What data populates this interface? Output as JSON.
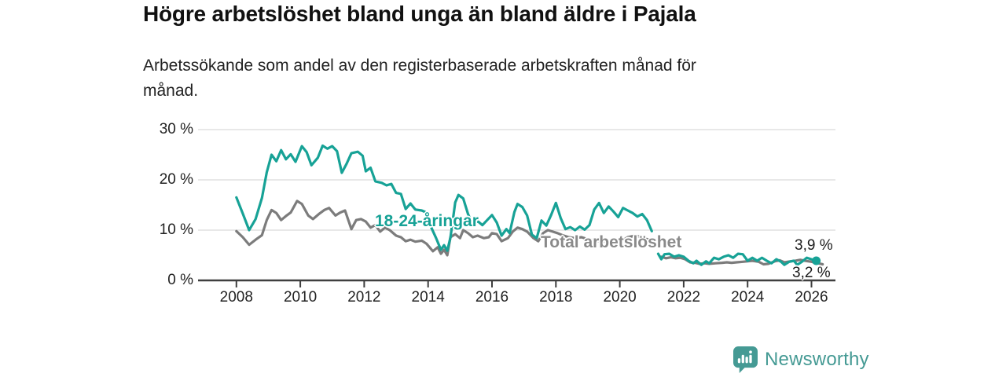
{
  "colors": {
    "youth_line": "#17A296",
    "total_line": "#7C7C7C",
    "axis": "#3f3f3f",
    "grid": "#dadada",
    "title_text": "#111111",
    "logo": "#459A94"
  },
  "branding": {
    "logo_text": "Newsworthy"
  },
  "chart_data": {
    "type": "line",
    "title": "Högre arbetslöshet bland unga än bland äldre i Pajala",
    "subtitle": "Arbetssökande som andel av den registerbaserade arbetskraften månad för\nmånad.",
    "xlabel": "",
    "ylabel": "",
    "grid": "horizontal",
    "legend_position": "inline-labels",
    "x_ticks": [
      2008,
      2010,
      2012,
      2014,
      2016,
      2018,
      2020,
      2022,
      2024,
      2026
    ],
    "y_ticks": [
      0,
      10,
      20,
      30
    ],
    "y_tick_labels": [
      "0 %",
      "10 %",
      "20 %",
      "30 %"
    ],
    "ylim": [
      0,
      32
    ],
    "xlim": [
      2006.8,
      2026.75
    ],
    "series": [
      {
        "name": "18-24-åringar",
        "color": "#17A296",
        "end_value_label": "3,9 %",
        "end_dot": true,
        "segments": [
          [
            [
              2008.0,
              16.5
            ],
            [
              2008.2,
              13.3
            ],
            [
              2008.4,
              10.0
            ],
            [
              2008.6,
              12.2
            ],
            [
              2008.8,
              16.4
            ],
            [
              2008.95,
              21.5
            ],
            [
              2009.1,
              25.0
            ],
            [
              2009.25,
              23.7
            ],
            [
              2009.4,
              25.9
            ],
            [
              2009.55,
              24.1
            ],
            [
              2009.7,
              25.1
            ],
            [
              2009.85,
              23.6
            ],
            [
              2010.05,
              26.7
            ],
            [
              2010.2,
              25.5
            ],
            [
              2010.35,
              22.9
            ],
            [
              2010.55,
              24.4
            ],
            [
              2010.7,
              26.8
            ],
            [
              2010.85,
              26.2
            ],
            [
              2011.0,
              26.7
            ],
            [
              2011.15,
              25.7
            ],
            [
              2011.3,
              21.4
            ],
            [
              2011.45,
              23.2
            ],
            [
              2011.6,
              25.3
            ],
            [
              2011.8,
              25.6
            ],
            [
              2011.95,
              24.8
            ],
            [
              2012.05,
              21.7
            ],
            [
              2012.2,
              22.4
            ],
            [
              2012.35,
              19.7
            ],
            [
              2012.55,
              19.4
            ],
            [
              2012.7,
              18.9
            ],
            [
              2012.85,
              19.2
            ],
            [
              2013.0,
              17.4
            ],
            [
              2013.15,
              17.2
            ],
            [
              2013.3,
              14.2
            ],
            [
              2013.45,
              15.3
            ],
            [
              2013.6,
              14.1
            ],
            [
              2013.8,
              13.9
            ],
            [
              2013.95,
              13.5
            ],
            [
              2014.1,
              10.5
            ],
            [
              2014.25,
              8.4
            ],
            [
              2014.4,
              6.1
            ],
            [
              2014.5,
              7.0
            ],
            [
              2014.6,
              5.9
            ],
            [
              2014.7,
              8.5
            ],
            [
              2014.85,
              15.5
            ],
            [
              2014.95,
              17.0
            ],
            [
              2015.1,
              16.3
            ],
            [
              2015.25,
              13.2
            ],
            [
              2015.4,
              11.1
            ],
            [
              2015.55,
              11.8
            ],
            [
              2015.7,
              11.0
            ],
            [
              2015.85,
              12.0
            ],
            [
              2016.0,
              13.0
            ],
            [
              2016.15,
              11.5
            ],
            [
              2016.3,
              8.9
            ],
            [
              2016.45,
              10.2
            ],
            [
              2016.55,
              9.4
            ],
            [
              2016.7,
              13.6
            ],
            [
              2016.8,
              15.2
            ],
            [
              2016.95,
              14.6
            ],
            [
              2017.1,
              12.9
            ],
            [
              2017.25,
              9.1
            ],
            [
              2017.4,
              8.4
            ],
            [
              2017.55,
              11.9
            ],
            [
              2017.7,
              10.9
            ],
            [
              2017.85,
              13.0
            ],
            [
              2018.0,
              15.4
            ],
            [
              2018.15,
              12.4
            ],
            [
              2018.3,
              10.2
            ],
            [
              2018.45,
              10.6
            ],
            [
              2018.6,
              10.0
            ],
            [
              2018.75,
              10.7
            ],
            [
              2018.9,
              10.1
            ],
            [
              2019.05,
              11.0
            ],
            [
              2019.2,
              14.1
            ],
            [
              2019.35,
              15.4
            ],
            [
              2019.5,
              13.4
            ],
            [
              2019.65,
              14.7
            ],
            [
              2019.8,
              13.7
            ],
            [
              2019.95,
              12.6
            ],
            [
              2020.1,
              14.4
            ],
            [
              2020.25,
              13.9
            ],
            [
              2020.4,
              13.4
            ],
            [
              2020.55,
              12.7
            ],
            [
              2020.7,
              13.2
            ],
            [
              2020.85,
              12.0
            ],
            [
              2021.0,
              9.8
            ]
          ],
          [
            [
              2021.2,
              5.3
            ],
            [
              2021.3,
              4.2
            ],
            [
              2021.4,
              5.2
            ],
            [
              2021.55,
              5.3
            ],
            [
              2021.7,
              4.7
            ],
            [
              2021.85,
              5.0
            ],
            [
              2022.0,
              4.7
            ],
            [
              2022.15,
              3.9
            ],
            [
              2022.3,
              3.4
            ],
            [
              2022.4,
              3.9
            ],
            [
              2022.55,
              3.1
            ],
            [
              2022.7,
              3.8
            ],
            [
              2022.8,
              3.4
            ],
            [
              2022.95,
              4.5
            ],
            [
              2023.1,
              4.2
            ],
            [
              2023.25,
              4.7
            ],
            [
              2023.4,
              5.0
            ],
            [
              2023.55,
              4.5
            ],
            [
              2023.7,
              5.3
            ],
            [
              2023.85,
              5.2
            ],
            [
              2024.0,
              3.9
            ],
            [
              2024.15,
              4.5
            ],
            [
              2024.3,
              3.9
            ],
            [
              2024.45,
              4.5
            ],
            [
              2024.6,
              3.9
            ],
            [
              2024.75,
              3.4
            ],
            [
              2024.9,
              4.2
            ],
            [
              2025.05,
              3.7
            ],
            [
              2025.15,
              3.1
            ],
            [
              2025.3,
              3.7
            ],
            [
              2025.45,
              3.9
            ],
            [
              2025.55,
              3.1
            ],
            [
              2025.7,
              3.7
            ],
            [
              2025.85,
              4.5
            ],
            [
              2026.0,
              4.2
            ],
            [
              2026.15,
              3.9
            ]
          ]
        ]
      },
      {
        "name": "Total arbetslöshet",
        "color": "#7C7C7C",
        "end_value_label": "3,2 %",
        "end_dot": false,
        "segments": [
          [
            [
              2008.0,
              9.8
            ],
            [
              2008.2,
              8.6
            ],
            [
              2008.4,
              7.1
            ],
            [
              2008.6,
              8.1
            ],
            [
              2008.8,
              9.0
            ],
            [
              2008.95,
              12.0
            ],
            [
              2009.1,
              14.0
            ],
            [
              2009.25,
              13.4
            ],
            [
              2009.4,
              12.0
            ],
            [
              2009.55,
              12.8
            ],
            [
              2009.7,
              13.5
            ],
            [
              2009.9,
              15.8
            ],
            [
              2010.05,
              15.2
            ],
            [
              2010.25,
              12.9
            ],
            [
              2010.4,
              12.2
            ],
            [
              2010.6,
              13.3
            ],
            [
              2010.75,
              14.0
            ],
            [
              2010.9,
              14.4
            ],
            [
              2011.1,
              12.9
            ],
            [
              2011.25,
              13.5
            ],
            [
              2011.4,
              13.9
            ],
            [
              2011.6,
              10.2
            ],
            [
              2011.75,
              12.0
            ],
            [
              2011.9,
              12.2
            ],
            [
              2012.05,
              11.7
            ],
            [
              2012.2,
              10.5
            ],
            [
              2012.35,
              11.0
            ],
            [
              2012.5,
              9.7
            ],
            [
              2012.65,
              10.5
            ],
            [
              2012.8,
              10.0
            ],
            [
              2013.0,
              8.9
            ],
            [
              2013.15,
              8.6
            ],
            [
              2013.3,
              7.8
            ],
            [
              2013.45,
              8.1
            ],
            [
              2013.6,
              7.7
            ],
            [
              2013.8,
              7.9
            ],
            [
              2013.95,
              7.3
            ],
            [
              2014.15,
              5.8
            ],
            [
              2014.3,
              6.6
            ],
            [
              2014.4,
              5.3
            ],
            [
              2014.5,
              6.1
            ],
            [
              2014.6,
              5.0
            ],
            [
              2014.7,
              8.6
            ],
            [
              2014.85,
              9.2
            ],
            [
              2015.0,
              8.4
            ],
            [
              2015.1,
              10.0
            ],
            [
              2015.25,
              9.4
            ],
            [
              2015.4,
              8.6
            ],
            [
              2015.55,
              8.9
            ],
            [
              2015.75,
              8.4
            ],
            [
              2015.9,
              8.6
            ],
            [
              2016.0,
              9.4
            ],
            [
              2016.15,
              9.2
            ],
            [
              2016.3,
              7.8
            ],
            [
              2016.5,
              8.4
            ],
            [
              2016.65,
              9.7
            ],
            [
              2016.8,
              10.5
            ],
            [
              2016.95,
              10.2
            ],
            [
              2017.1,
              9.7
            ],
            [
              2017.3,
              8.4
            ],
            [
              2017.45,
              7.8
            ],
            [
              2017.6,
              9.4
            ],
            [
              2017.75,
              10.0
            ],
            [
              2017.9,
              9.7
            ],
            [
              2018.05,
              9.4
            ],
            [
              2018.2,
              9.0
            ],
            [
              2018.4,
              8.6
            ],
            [
              2018.6,
              8.4
            ],
            [
              2018.8,
              8.6
            ],
            [
              2019.0,
              8.2
            ],
            [
              2019.25,
              7.9
            ],
            [
              2019.5,
              7.7
            ],
            [
              2019.75,
              7.8
            ],
            [
              2020.0,
              7.6
            ],
            [
              2020.25,
              8.6
            ],
            [
              2020.5,
              8.9
            ],
            [
              2020.75,
              8.4
            ],
            [
              2021.0,
              7.9
            ]
          ],
          [
            [
              2021.3,
              4.7
            ],
            [
              2021.45,
              4.4
            ],
            [
              2021.6,
              4.6
            ],
            [
              2021.75,
              4.4
            ],
            [
              2021.9,
              4.5
            ],
            [
              2022.05,
              4.2
            ],
            [
              2022.2,
              3.6
            ],
            [
              2022.35,
              3.5
            ],
            [
              2022.5,
              3.3
            ],
            [
              2022.65,
              3.4
            ],
            [
              2022.8,
              3.3
            ],
            [
              2023.0,
              3.4
            ],
            [
              2023.2,
              3.5
            ],
            [
              2023.35,
              3.6
            ],
            [
              2023.5,
              3.5
            ],
            [
              2023.65,
              3.6
            ],
            [
              2023.85,
              3.7
            ],
            [
              2024.0,
              3.8
            ],
            [
              2024.15,
              3.9
            ],
            [
              2024.35,
              3.7
            ],
            [
              2024.5,
              3.2
            ],
            [
              2024.65,
              3.3
            ],
            [
              2024.85,
              3.8
            ],
            [
              2025.0,
              4.0
            ],
            [
              2025.15,
              3.6
            ],
            [
              2025.35,
              3.8
            ],
            [
              2025.5,
              3.9
            ],
            [
              2025.65,
              4.1
            ],
            [
              2025.8,
              3.9
            ],
            [
              2026.0,
              3.7
            ],
            [
              2026.2,
              3.4
            ],
            [
              2026.35,
              3.2
            ]
          ]
        ]
      }
    ]
  }
}
